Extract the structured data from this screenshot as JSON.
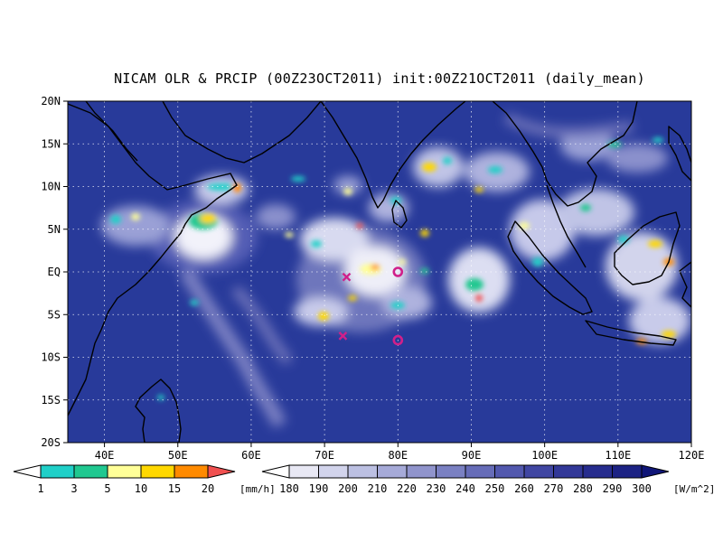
{
  "title": "NICAM OLR & PRCIP (00Z23OCT2011) init:00Z21OCT2011 (daily_mean)",
  "map": {
    "lon_range": [
      35,
      120
    ],
    "lat_range": [
      -20,
      20
    ],
    "lon_ticks": [
      "40E",
      "50E",
      "60E",
      "70E",
      "80E",
      "90E",
      "100E",
      "110E",
      "120E"
    ],
    "lat_ticks": [
      "20N",
      "15N",
      "10N",
      "5N",
      "EQ",
      "5S",
      "10S",
      "15S",
      "20S"
    ],
    "grid": "dotted",
    "ocean_color": "#283a9a",
    "land_outline_color": "#000000"
  },
  "markers": [
    {
      "symbol": "x",
      "color": "#d0208a",
      "lon": 73,
      "lat": -0.6
    },
    {
      "symbol": "x",
      "color": "#d0208a",
      "lon": 72.5,
      "lat": -7.5
    },
    {
      "symbol": "circle",
      "color": "#d0208a",
      "lon": 80,
      "lat": 0
    },
    {
      "symbol": "circle",
      "color": "#d0208a",
      "lon": 80,
      "lat": -8
    }
  ],
  "precip_colorbar": {
    "unit": "[mm/h]",
    "labels": [
      "1",
      "3",
      "5",
      "10",
      "15",
      "20"
    ],
    "colors": [
      "#ffffff",
      "#20d0c8",
      "#20c890",
      "#ffff98",
      "#ffd800",
      "#ff8a00",
      "#f05050"
    ]
  },
  "olr_colorbar": {
    "unit": "[W/m^2]",
    "labels": [
      "180",
      "190",
      "200",
      "210",
      "220",
      "230",
      "240",
      "250",
      "260",
      "270",
      "280",
      "290",
      "300"
    ],
    "colors": [
      "#ffffff",
      "#e8e8f4",
      "#d2d4ec",
      "#bcc0e2",
      "#a6aad8",
      "#9094cc",
      "#7a80c2",
      "#666cb8",
      "#5258ae",
      "#4046a2",
      "#323898",
      "#262c8e",
      "#1c2284",
      "#101678"
    ]
  }
}
